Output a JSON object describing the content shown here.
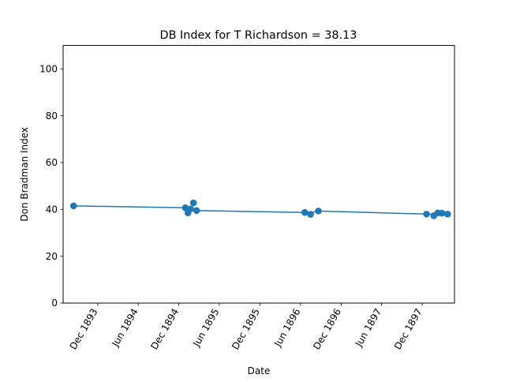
{
  "chart_data": {
    "type": "line",
    "title": "DB Index for T Richardson = 38.13",
    "xlabel": "Date",
    "ylabel": "Don Bradman Index",
    "xlim": [
      "1893-06-28",
      "1898-04-25"
    ],
    "ylim": [
      0,
      110
    ],
    "x_ticks": [
      {
        "date": "1893-12-01",
        "label": "Dec 1893"
      },
      {
        "date": "1894-06-01",
        "label": "Jun 1894"
      },
      {
        "date": "1894-12-01",
        "label": "Dec 1894"
      },
      {
        "date": "1895-06-01",
        "label": "Jun 1895"
      },
      {
        "date": "1895-12-01",
        "label": "Dec 1895"
      },
      {
        "date": "1896-06-01",
        "label": "Jun 1896"
      },
      {
        "date": "1896-12-01",
        "label": "Dec 1896"
      },
      {
        "date": "1897-06-01",
        "label": "Jun 1897"
      },
      {
        "date": "1897-12-01",
        "label": "Dec 1897"
      }
    ],
    "y_ticks": [
      0,
      20,
      40,
      60,
      80,
      100
    ],
    "grid": false,
    "color": "#1f77b4",
    "series": [
      {
        "name": "trend",
        "points": [
          {
            "x": "1893-08-14",
            "y": 41.5
          },
          {
            "x": "1894-12-30",
            "y": 40.7
          },
          {
            "x": "1895-02-10",
            "y": 39.5
          },
          {
            "x": "1896-06-20",
            "y": 38.7
          },
          {
            "x": "1896-07-16",
            "y": 38.6
          },
          {
            "x": "1896-08-20",
            "y": 39.3
          },
          {
            "x": "1897-12-20",
            "y": 38.0
          },
          {
            "x": "1898-03-25",
            "y": 38.0
          }
        ]
      },
      {
        "name": "scatter",
        "points": [
          {
            "x": "1893-08-14",
            "y": 41.5
          },
          {
            "x": "1894-12-30",
            "y": 40.7
          },
          {
            "x": "1895-01-11",
            "y": 38.5
          },
          {
            "x": "1895-01-23",
            "y": 40.2
          },
          {
            "x": "1895-02-05",
            "y": 42.8
          },
          {
            "x": "1895-02-19",
            "y": 39.5
          },
          {
            "x": "1896-06-20",
            "y": 38.7
          },
          {
            "x": "1896-07-16",
            "y": 37.9
          },
          {
            "x": "1896-08-20",
            "y": 39.3
          },
          {
            "x": "1897-12-20",
            "y": 38.0
          },
          {
            "x": "1898-01-22",
            "y": 37.3
          },
          {
            "x": "1898-02-09",
            "y": 38.5
          },
          {
            "x": "1898-02-27",
            "y": 38.4
          },
          {
            "x": "1898-03-25",
            "y": 38.0
          }
        ]
      }
    ]
  }
}
